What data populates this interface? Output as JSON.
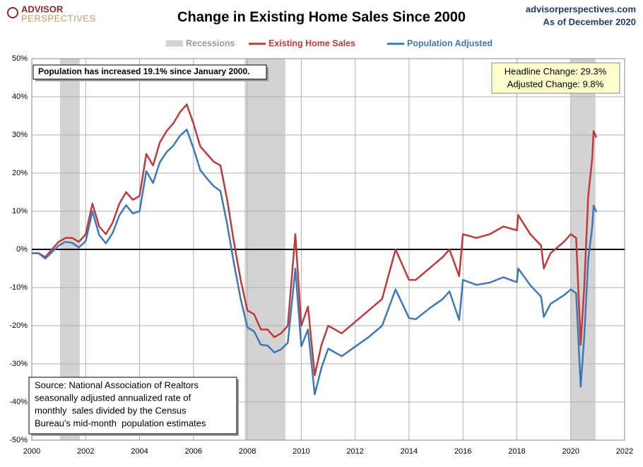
{
  "chart_data": {
    "type": "line",
    "title": "Change in Existing Home Sales Since 2000",
    "brand": [
      "ADVISOR",
      "PERSPECTIVES"
    ],
    "site": "advisorperspectives.com",
    "as_of": "As of December 2020",
    "recession_label": "Recessions",
    "recession_color": "#d3d3d3",
    "recessions": [
      [
        2001.05,
        2001.78
      ],
      [
        2007.9,
        2009.41
      ],
      [
        2020.0,
        2020.92
      ]
    ],
    "annotation": "Population has increased 19.1% since January 2000.",
    "summary": [
      "Headline Change: 29.3%",
      "Adjusted Change: 9.8%"
    ],
    "source": [
      "Source: National Association of Realtors",
      "seasonally adjusted annualized rate of",
      "monthly  sales divided by the Census",
      "Bureau's mid-month  population estimates"
    ],
    "x": [
      2000.0,
      2000.25,
      2000.5,
      2000.75,
      2001.0,
      2001.25,
      2001.5,
      2001.75,
      2002.0,
      2002.25,
      2002.5,
      2002.75,
      2003.0,
      2003.25,
      2003.5,
      2003.75,
      2004.0,
      2004.25,
      2004.5,
      2004.75,
      2005.0,
      2005.25,
      2005.5,
      2005.75,
      2006.0,
      2006.25,
      2006.5,
      2006.75,
      2007.0,
      2007.25,
      2007.5,
      2007.75,
      2008.0,
      2008.25,
      2008.5,
      2008.75,
      2009.0,
      2009.25,
      2009.5,
      2009.78,
      2010.0,
      2010.25,
      2010.5,
      2010.75,
      2011.0,
      2011.5,
      2012.0,
      2012.5,
      2013.0,
      2013.5,
      2014.0,
      2014.25,
      2014.75,
      2015.25,
      2015.5,
      2015.86,
      2016.0,
      2016.5,
      2017.0,
      2017.5,
      2018.0,
      2018.05,
      2018.5,
      2018.9,
      2019.0,
      2019.25,
      2019.75,
      2020.0,
      2020.2,
      2020.37,
      2020.5,
      2020.65,
      2020.8,
      2020.85,
      2020.95
    ],
    "series": [
      {
        "name": "Existing Home Sales",
        "color": "#c0393b",
        "values": [
          -1,
          -1,
          -2,
          0,
          2,
          3,
          3,
          2,
          4,
          12,
          6,
          4,
          7,
          12,
          15,
          13,
          14,
          25,
          22,
          28,
          31,
          33,
          36,
          38,
          33,
          27,
          25,
          23,
          22,
          13,
          2,
          -8,
          -16,
          -17,
          -21,
          -21,
          -23,
          -22,
          -20,
          4,
          -20,
          -15,
          -33,
          -25,
          -20,
          -22,
          -19,
          -16,
          -13,
          0,
          -8,
          -8,
          -5,
          -2,
          0,
          -7,
          4,
          3,
          4,
          6,
          5,
          9,
          4,
          1,
          -5,
          -1,
          2,
          4,
          3,
          -25,
          -10,
          14,
          24,
          31,
          29.3
        ]
      },
      {
        "name": "Population Adjusted",
        "color": "#3e78b9",
        "values": [
          -1,
          -1,
          -2.4,
          -0.7,
          1,
          2,
          1.7,
          0.5,
          2.2,
          10,
          3.8,
          1.6,
          4.3,
          8.9,
          11.6,
          9.4,
          10,
          20.5,
          17.4,
          22.8,
          25.5,
          27.2,
          29.8,
          31.4,
          26.5,
          20.8,
          18.6,
          16.6,
          15.3,
          6.6,
          -3.6,
          -13,
          -20.4,
          -21.5,
          -25,
          -25.2,
          -27,
          -26.2,
          -24.5,
          -5,
          -25.4,
          -21,
          -38,
          -31,
          -26,
          -28,
          -25.5,
          -23,
          -20,
          -10.5,
          -18,
          -18.3,
          -15.5,
          -13,
          -11,
          -18.5,
          -8,
          -9.3,
          -8.7,
          -7.3,
          -8.6,
          -5,
          -9.4,
          -12.4,
          -17.7,
          -14.3,
          -12,
          -10.5,
          -11.5,
          -36,
          -23,
          -2.5,
          6,
          11.5,
          9.8
        ]
      }
    ],
    "xlim": [
      2000,
      2022
    ],
    "xticks": [
      2000,
      2002,
      2004,
      2006,
      2008,
      2010,
      2012,
      2014,
      2016,
      2018,
      2020,
      2022
    ],
    "ylim": [
      -50,
      50
    ],
    "yticks": [
      {
        "value": -50,
        "label": "-50%"
      },
      {
        "value": -40,
        "label": "-40%"
      },
      {
        "value": -30,
        "label": "-30%"
      },
      {
        "value": -20,
        "label": "-20%"
      },
      {
        "value": -10,
        "label": "-10%"
      },
      {
        "value": 0,
        "label": "0%"
      },
      {
        "value": 10,
        "label": "10%"
      },
      {
        "value": 20,
        "label": "20%"
      },
      {
        "value": 30,
        "label": "30%"
      },
      {
        "value": 40,
        "label": "40%"
      },
      {
        "value": 50,
        "label": "50%"
      }
    ],
    "grid": true
  }
}
